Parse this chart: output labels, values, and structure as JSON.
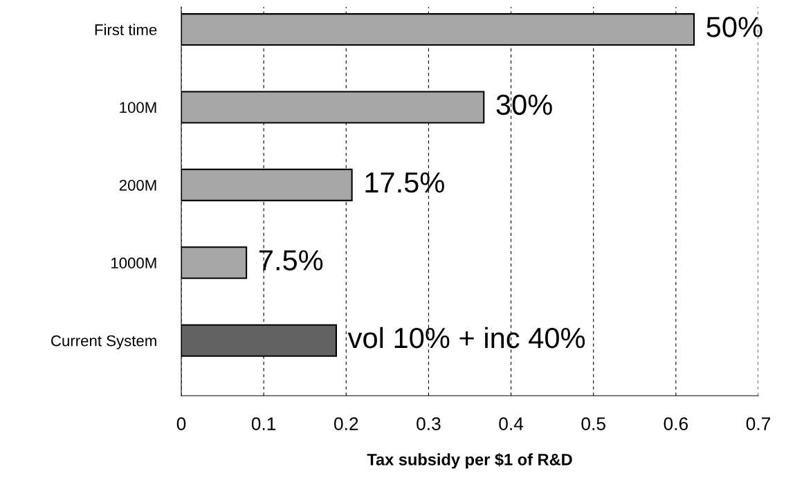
{
  "chart_data": {
    "type": "bar",
    "orientation": "horizontal",
    "xlabel": "Tax subsidy per $1 of R&D",
    "categories": [
      "First time",
      "100M",
      "200M",
      "1000M",
      "Current System"
    ],
    "values": [
      0.622,
      0.367,
      0.207,
      0.079,
      0.188
    ],
    "colors": [
      "#a6a6a6",
      "#a6a6a6",
      "#a6a6a6",
      "#a6a6a6",
      "#636363"
    ],
    "xlim": [
      0,
      0.7
    ],
    "xticks": [
      0,
      0.1,
      0.2,
      0.3,
      0.4,
      0.5,
      0.6,
      0.7
    ],
    "grid": "x",
    "annotations": [
      {
        "text": "50%",
        "x": 0.622,
        "y": "First time"
      },
      {
        "text": "30%",
        "x": 0.367,
        "y": "100M"
      },
      {
        "text": "17.5%",
        "x": 0.207,
        "y": "200M"
      },
      {
        "text": "7.5%",
        "x": 0.079,
        "y": "1000M"
      },
      {
        "text": "vol 10% + inc 40%",
        "x": 0.188,
        "y": "Current System"
      }
    ]
  }
}
